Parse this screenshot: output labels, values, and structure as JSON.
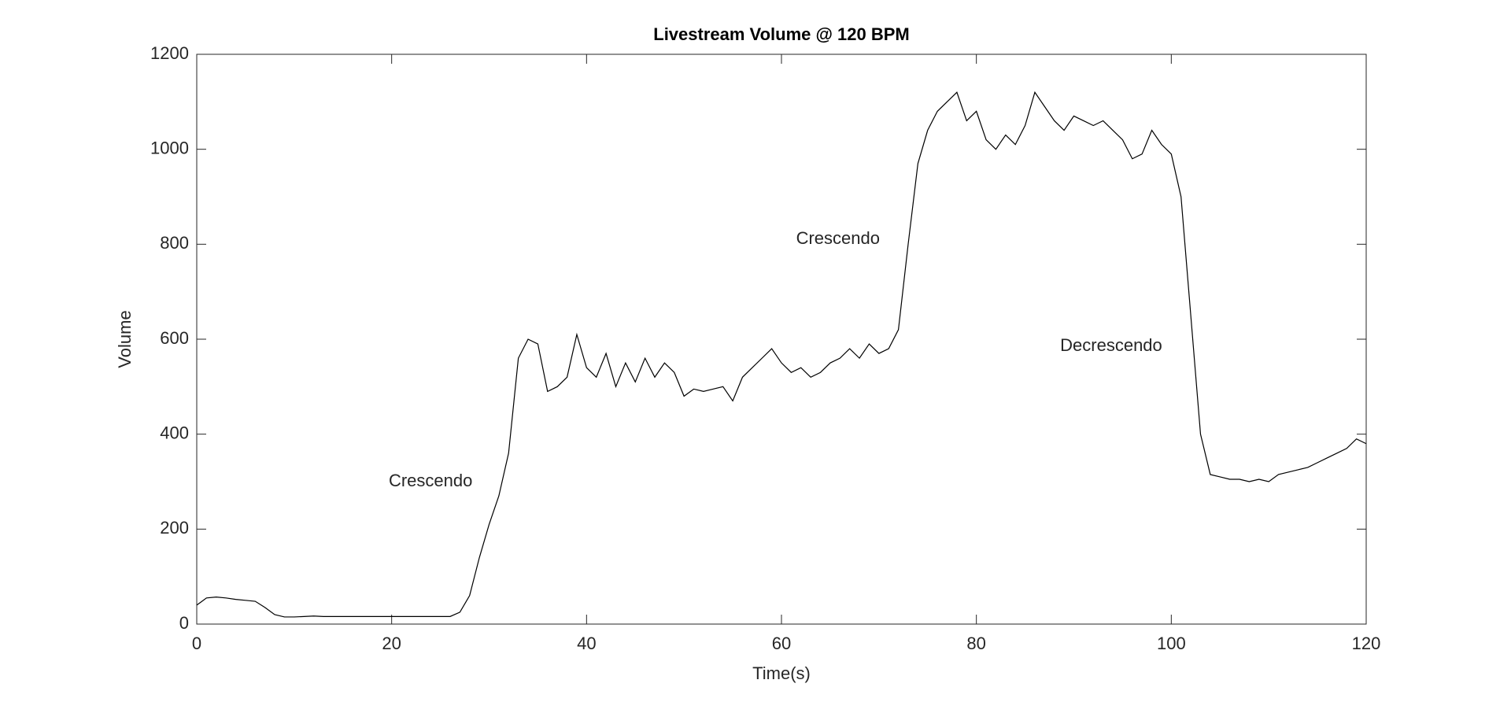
{
  "chart_data": {
    "type": "line",
    "title": "Livestream Volume @ 120 BPM",
    "x_label": "Time(s)",
    "y_label": "Volume",
    "x": [
      0,
      1,
      2,
      3,
      4,
      5,
      6,
      7,
      8,
      9,
      10,
      11,
      12,
      13,
      14,
      15,
      16,
      17,
      18,
      19,
      20,
      21,
      22,
      23,
      24,
      25,
      26,
      27,
      28,
      29,
      30,
      31,
      32,
      33,
      34,
      35,
      36,
      37,
      38,
      39,
      40,
      41,
      42,
      43,
      44,
      45,
      46,
      47,
      48,
      49,
      50,
      51,
      52,
      53,
      54,
      55,
      56,
      57,
      58,
      59,
      60,
      61,
      62,
      63,
      64,
      65,
      66,
      67,
      68,
      69,
      70,
      71,
      72,
      73,
      74,
      75,
      76,
      77,
      78,
      79,
      80,
      81,
      82,
      83,
      84,
      85,
      86,
      87,
      88,
      89,
      90,
      91,
      92,
      93,
      94,
      95,
      96,
      97,
      98,
      99,
      100,
      101,
      102,
      103,
      104,
      105,
      106,
      107,
      108,
      109,
      110,
      111,
      112,
      113,
      114,
      115,
      116,
      117,
      118,
      119,
      120
    ],
    "values": [
      40,
      55,
      57,
      55,
      52,
      50,
      48,
      35,
      20,
      15,
      15,
      16,
      17,
      16,
      16,
      16,
      16,
      16,
      16,
      16,
      16,
      16,
      16,
      16,
      16,
      16,
      16,
      25,
      60,
      140,
      210,
      270,
      360,
      560,
      600,
      590,
      490,
      500,
      520,
      610,
      540,
      520,
      570,
      500,
      550,
      510,
      560,
      520,
      550,
      530,
      480,
      495,
      490,
      495,
      500,
      470,
      520,
      540,
      560,
      580,
      550,
      530,
      540,
      520,
      530,
      550,
      560,
      580,
      560,
      590,
      570,
      580,
      620,
      800,
      970,
      1040,
      1080,
      1100,
      1120,
      1060,
      1080,
      1020,
      1000,
      1030,
      1010,
      1050,
      1120,
      1090,
      1060,
      1040,
      1070,
      1060,
      1050,
      1060,
      1040,
      1020,
      980,
      990,
      1040,
      1010,
      990,
      900,
      650,
      400,
      315,
      310,
      305,
      305,
      300,
      305,
      300,
      315,
      320,
      325,
      330,
      340,
      350,
      360,
      370,
      390,
      380
    ],
    "color": "#000000",
    "xlim": [
      0,
      120
    ],
    "xticks": [
      0,
      20,
      40,
      60,
      80,
      100,
      120
    ],
    "ylim": [
      0,
      1200
    ],
    "yticks": [
      0,
      200,
      400,
      600,
      800,
      1000,
      1200
    ],
    "grid": false,
    "annotations": [
      {
        "text": "Crescendo",
        "x": 19.7,
        "y": 300
      },
      {
        "text": "Crescendo",
        "x": 61.5,
        "y": 810
      },
      {
        "text": "Decrescendo",
        "x": 88.6,
        "y": 585
      }
    ]
  }
}
